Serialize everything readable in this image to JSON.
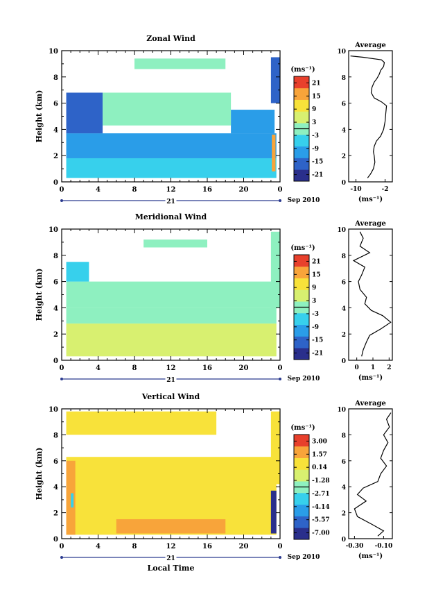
{
  "chart_data": [
    {
      "type": "heatmap",
      "title": "Zonal Wind",
      "ylabel": "Height (km)",
      "x_ticks": [
        "0",
        "4",
        "8",
        "12",
        "16",
        "20",
        "0"
      ],
      "y_ticks": [
        "0",
        "2",
        "4",
        "6",
        "8",
        "10"
      ],
      "xlim": [
        0,
        24
      ],
      "ylim": [
        0,
        10
      ],
      "date_label": "21",
      "month_label": "Sep 2010",
      "colorbar": {
        "unit_label": "(ms⁻¹)",
        "tick_labels": [
          "21",
          "15",
          "9",
          "3",
          "-3",
          "-9",
          "-15",
          "-21"
        ],
        "range": [
          -24,
          24
        ]
      },
      "average_profile": {
        "title": "Average",
        "xlabel": "(ms⁻¹)",
        "x_ticks": [
          "-10",
          "-2"
        ],
        "y_ticks": [
          "0",
          "2",
          "4",
          "6",
          "8",
          "10"
        ],
        "xlim": [
          -12,
          0
        ],
        "points": [
          [
            -6.8,
            0.3
          ],
          [
            -6,
            0.6
          ],
          [
            -5.2,
            1
          ],
          [
            -4.8,
            1.5
          ],
          [
            -5,
            2
          ],
          [
            -5.2,
            2.3
          ],
          [
            -5,
            2.7
          ],
          [
            -4.4,
            3.1
          ],
          [
            -3.2,
            3.5
          ],
          [
            -2.4,
            4
          ],
          [
            -2,
            4.6
          ],
          [
            -1.8,
            5.2
          ],
          [
            -1.6,
            5.8
          ],
          [
            -3,
            6.1
          ],
          [
            -5,
            6.4
          ],
          [
            -5.8,
            6.8
          ],
          [
            -5.6,
            7.2
          ],
          [
            -5,
            7.6
          ],
          [
            -4.2,
            7.9
          ],
          [
            -3.6,
            8.2
          ],
          [
            -3.2,
            8.5
          ],
          [
            -2.4,
            8.8
          ],
          [
            -2.2,
            9.1
          ],
          [
            -3,
            9.3
          ],
          [
            -8,
            9.5
          ],
          [
            -11.5,
            9.6
          ]
        ]
      },
      "regions": [
        {
          "x0": 0.5,
          "x1": 23.6,
          "y0": 0.3,
          "y1": 1.8,
          "value": -7
        },
        {
          "x0": 0.5,
          "x1": 23.6,
          "y0": 1.8,
          "y1": 3.7,
          "value": -12
        },
        {
          "x0": 0.5,
          "x1": 4.5,
          "y0": 3.7,
          "y1": 6.8,
          "value": -15
        },
        {
          "x0": 4.5,
          "x1": 18.6,
          "y0": 4.3,
          "y1": 6.8,
          "value": -1
        },
        {
          "x0": 18.6,
          "x1": 23.4,
          "y0": 3.7,
          "y1": 5.5,
          "value": -10
        },
        {
          "x0": 23.0,
          "x1": 24.0,
          "y0": 6.0,
          "y1": 9.5,
          "value": -18
        },
        {
          "x0": 23.1,
          "x1": 23.5,
          "y0": 0.8,
          "y1": 3.6,
          "value": 18
        },
        {
          "x0": 8.0,
          "x1": 18.0,
          "y0": 8.6,
          "y1": 9.4,
          "value": 0
        }
      ]
    },
    {
      "type": "heatmap",
      "title": "Meridional Wind",
      "ylabel": "Height (km)",
      "x_ticks": [
        "0",
        "4",
        "8",
        "12",
        "16",
        "20",
        "0"
      ],
      "y_ticks": [
        "0",
        "2",
        "4",
        "6",
        "8",
        "10"
      ],
      "xlim": [
        0,
        24
      ],
      "ylim": [
        0,
        10
      ],
      "date_label": "21",
      "month_label": "Sep 2010",
      "colorbar": {
        "unit_label": "(ms⁻¹)",
        "tick_labels": [
          "21",
          "15",
          "9",
          "3",
          "-3",
          "-9",
          "-15",
          "-21"
        ],
        "range": [
          -24,
          24
        ]
      },
      "average_profile": {
        "title": "Average",
        "xlabel": "(ms⁻¹)",
        "x_ticks": [
          "0",
          "1",
          "2"
        ],
        "y_ticks": [
          "0",
          "2",
          "4",
          "6",
          "8",
          "10"
        ],
        "xlim": [
          -0.5,
          2.2
        ],
        "points": [
          [
            0.3,
            0.3
          ],
          [
            0.4,
            0.8
          ],
          [
            0.6,
            1.4
          ],
          [
            0.8,
            1.9
          ],
          [
            1.5,
            2.4
          ],
          [
            2.1,
            2.9
          ],
          [
            1.6,
            3.4
          ],
          [
            0.9,
            3.8
          ],
          [
            0.5,
            4.3
          ],
          [
            0.6,
            4.8
          ],
          [
            0.2,
            5.4
          ],
          [
            0.1,
            6
          ],
          [
            0.3,
            6.5
          ],
          [
            0.5,
            7.1
          ],
          [
            -0.2,
            7.6
          ],
          [
            0.8,
            8.2
          ],
          [
            0.2,
            8.7
          ],
          [
            0.4,
            9.3
          ],
          [
            0.2,
            9.8
          ]
        ]
      },
      "regions": [
        {
          "x0": 0.5,
          "x1": 23.6,
          "y0": 0.3,
          "y1": 2.8,
          "value": 3
        },
        {
          "x0": 0.5,
          "x1": 23.6,
          "y0": 2.8,
          "y1": 4.0,
          "value": 1
        },
        {
          "x0": 0.5,
          "x1": 23.6,
          "y0": 4.0,
          "y1": 6.0,
          "value": -1
        },
        {
          "x0": 0.5,
          "x1": 3.0,
          "y0": 6.0,
          "y1": 7.5,
          "value": -6
        },
        {
          "x0": 23.0,
          "x1": 24.0,
          "y0": 4.0,
          "y1": 9.8,
          "value": -2
        },
        {
          "x0": 9.0,
          "x1": 16.0,
          "y0": 8.6,
          "y1": 9.2,
          "value": 0
        }
      ]
    },
    {
      "type": "heatmap",
      "title": "Vertical Wind",
      "ylabel": "Height (km)",
      "xlabel": "Local Time",
      "x_ticks": [
        "0",
        "4",
        "8",
        "12",
        "16",
        "20",
        "0"
      ],
      "y_ticks": [
        "0",
        "2",
        "4",
        "6",
        "8",
        "10"
      ],
      "xlim": [
        0,
        24
      ],
      "ylim": [
        0,
        10
      ],
      "date_label": "21",
      "month_label": "Sep 2010",
      "colorbar": {
        "unit_label": "(ms⁻¹)",
        "tick_labels": [
          "3.00",
          "1.57",
          "0.14",
          "-1.28",
          "-2.71",
          "-4.14",
          "-5.57",
          "-7.00"
        ],
        "range": [
          -7.7,
          3.7
        ]
      },
      "average_profile": {
        "title": "Average",
        "xlabel": "(ms⁻¹)",
        "x_ticks": [
          "-0.30",
          "-0.10"
        ],
        "y_ticks": [
          "0",
          "2",
          "4",
          "6",
          "8",
          "10"
        ],
        "xlim": [
          -0.34,
          -0.04
        ],
        "points": [
          [
            -0.14,
            0.2
          ],
          [
            -0.1,
            0.6
          ],
          [
            -0.18,
            1.1
          ],
          [
            -0.28,
            1.7
          ],
          [
            -0.3,
            2.3
          ],
          [
            -0.22,
            2.9
          ],
          [
            -0.28,
            3.4
          ],
          [
            -0.24,
            3.9
          ],
          [
            -0.14,
            4.4
          ],
          [
            -0.12,
            5
          ],
          [
            -0.08,
            5.6
          ],
          [
            -0.12,
            6.2
          ],
          [
            -0.1,
            6.8
          ],
          [
            -0.07,
            7.4
          ],
          [
            -0.1,
            8
          ],
          [
            -0.06,
            8.6
          ],
          [
            -0.08,
            9.2
          ],
          [
            -0.05,
            9.7
          ]
        ]
      },
      "regions": [
        {
          "x0": 0.5,
          "x1": 23.6,
          "y0": 0.3,
          "y1": 6.3,
          "value": 0.3
        },
        {
          "x0": 0.5,
          "x1": 1.5,
          "y0": 0.3,
          "y1": 6.0,
          "value": 1.6
        },
        {
          "x0": 6.0,
          "x1": 18.0,
          "y0": 0.4,
          "y1": 1.5,
          "value": 1.4
        },
        {
          "x0": 0.5,
          "x1": 17.0,
          "y0": 8.0,
          "y1": 9.8,
          "value": 0.3
        },
        {
          "x0": 23.0,
          "x1": 24.0,
          "y0": 4.2,
          "y1": 9.8,
          "value": 0.2
        },
        {
          "x0": 23.0,
          "x1": 23.6,
          "y0": 0.4,
          "y1": 3.7,
          "value": -7
        },
        {
          "x0": 1.0,
          "x1": 1.3,
          "y0": 2.4,
          "y1": 3.5,
          "value": -3
        }
      ]
    }
  ]
}
